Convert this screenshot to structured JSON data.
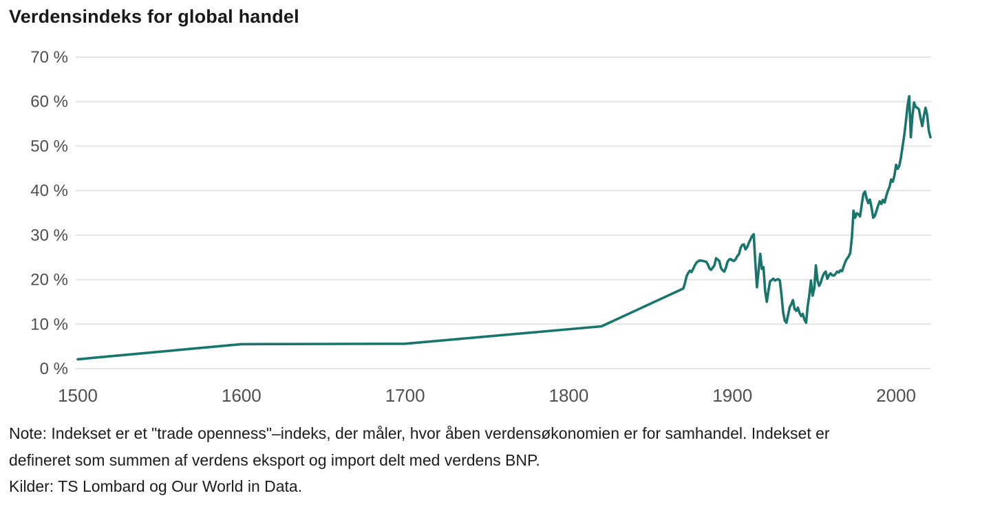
{
  "header": {
    "title": "Verdensindeks for global handel"
  },
  "chart_data": {
    "type": "line",
    "title": "Verdensindeks for global handel",
    "xlabel": "",
    "ylabel": "",
    "xlim": [
      1500,
      2021
    ],
    "ylim": [
      0,
      70
    ],
    "grid": "horizontal-only",
    "legend": "none",
    "gridline_color": "#e4e4e4",
    "axis_label_color": "#4f4f4f",
    "x_ticks": [
      {
        "value": 1500,
        "label": "1500"
      },
      {
        "value": 1600,
        "label": "1600"
      },
      {
        "value": 1700,
        "label": "1700"
      },
      {
        "value": 1800,
        "label": "1800"
      },
      {
        "value": 1900,
        "label": "1900"
      },
      {
        "value": 2000,
        "label": "2000"
      }
    ],
    "y_ticks": [
      {
        "value": 0,
        "label": "0 %"
      },
      {
        "value": 10,
        "label": "10 %"
      },
      {
        "value": 20,
        "label": "20 %"
      },
      {
        "value": 30,
        "label": "30 %"
      },
      {
        "value": 40,
        "label": "40 %"
      },
      {
        "value": 50,
        "label": "50 %"
      },
      {
        "value": 60,
        "label": "60 %"
      },
      {
        "value": 70,
        "label": "70 %"
      }
    ],
    "series": [
      {
        "name": "Verdensindeks for global handel",
        "color": "#17756b",
        "stroke_width": 3.6,
        "points": [
          [
            1500,
            2.1
          ],
          [
            1600,
            5.5
          ],
          [
            1700,
            5.6
          ],
          [
            1820,
            9.5
          ],
          [
            1870,
            18
          ],
          [
            1871,
            19.2
          ],
          [
            1872,
            20.8
          ],
          [
            1873,
            21.5
          ],
          [
            1874,
            22
          ],
          [
            1875,
            21.7
          ],
          [
            1876,
            22.4
          ],
          [
            1877,
            23.2
          ],
          [
            1878,
            23.8
          ],
          [
            1879,
            24.1
          ],
          [
            1880,
            24.3
          ],
          [
            1882,
            24.2
          ],
          [
            1884,
            24
          ],
          [
            1885,
            23.4
          ],
          [
            1886,
            22.5
          ],
          [
            1887,
            22.2
          ],
          [
            1888,
            22.7
          ],
          [
            1889,
            23.2
          ],
          [
            1890,
            24.8
          ],
          [
            1891,
            24.5
          ],
          [
            1892,
            24.2
          ],
          [
            1893,
            22.6
          ],
          [
            1894,
            22.1
          ],
          [
            1895,
            21.8
          ],
          [
            1896,
            22.6
          ],
          [
            1897,
            24
          ],
          [
            1898,
            24.5
          ],
          [
            1899,
            24.6
          ],
          [
            1900,
            24.3
          ],
          [
            1901,
            24.2
          ],
          [
            1902,
            24.6
          ],
          [
            1903,
            25.3
          ],
          [
            1904,
            25.7
          ],
          [
            1905,
            27.1
          ],
          [
            1906,
            27.8
          ],
          [
            1907,
            27.9
          ],
          [
            1908,
            26.8
          ],
          [
            1909,
            27.3
          ],
          [
            1910,
            28.2
          ],
          [
            1911,
            29
          ],
          [
            1912,
            29.8
          ],
          [
            1913,
            30.2
          ],
          [
            1914,
            24
          ],
          [
            1915,
            18.3
          ],
          [
            1916,
            22
          ],
          [
            1917,
            25.8
          ],
          [
            1918,
            22.4
          ],
          [
            1919,
            22.8
          ],
          [
            1920,
            17.5
          ],
          [
            1921,
            15
          ],
          [
            1922,
            17.5
          ],
          [
            1923,
            19.6
          ],
          [
            1924,
            19.9
          ],
          [
            1925,
            20.2
          ],
          [
            1926,
            19.8
          ],
          [
            1927,
            20
          ],
          [
            1928,
            20.1
          ],
          [
            1929,
            19.8
          ],
          [
            1930,
            16.5
          ],
          [
            1931,
            12.6
          ],
          [
            1932,
            10.8
          ],
          [
            1933,
            10.3
          ],
          [
            1934,
            12
          ],
          [
            1935,
            13.8
          ],
          [
            1936,
            14.5
          ],
          [
            1937,
            15.4
          ],
          [
            1938,
            13.4
          ],
          [
            1939,
            13
          ],
          [
            1940,
            13.7
          ],
          [
            1941,
            12.5
          ],
          [
            1942,
            11.8
          ],
          [
            1943,
            12.3
          ],
          [
            1944,
            11
          ],
          [
            1945,
            10.3
          ],
          [
            1946,
            14
          ],
          [
            1947,
            16.5
          ],
          [
            1948,
            19.8
          ],
          [
            1949,
            16.4
          ],
          [
            1950,
            18
          ],
          [
            1951,
            23.2
          ],
          [
            1952,
            19.8
          ],
          [
            1953,
            18.6
          ],
          [
            1954,
            19.4
          ],
          [
            1955,
            20.6
          ],
          [
            1956,
            21.4
          ],
          [
            1957,
            21.8
          ],
          [
            1958,
            20.2
          ],
          [
            1959,
            21
          ],
          [
            1960,
            21.4
          ],
          [
            1961,
            21
          ],
          [
            1962,
            20.9
          ],
          [
            1963,
            21.3
          ],
          [
            1964,
            21.8
          ],
          [
            1965,
            21.6
          ],
          [
            1966,
            22.1
          ],
          [
            1967,
            21.9
          ],
          [
            1968,
            23
          ],
          [
            1969,
            24
          ],
          [
            1970,
            24.7
          ],
          [
            1971,
            25.2
          ],
          [
            1972,
            26
          ],
          [
            1973,
            29.5
          ],
          [
            1974,
            35.5
          ],
          [
            1975,
            33.9
          ],
          [
            1976,
            34.9
          ],
          [
            1977,
            34.7
          ],
          [
            1978,
            34.2
          ],
          [
            1979,
            36.8
          ],
          [
            1980,
            39.2
          ],
          [
            1981,
            39.8
          ],
          [
            1982,
            38.2
          ],
          [
            1983,
            37.2
          ],
          [
            1984,
            38
          ],
          [
            1985,
            36.2
          ],
          [
            1986,
            33.9
          ],
          [
            1987,
            34.3
          ],
          [
            1988,
            35.4
          ],
          [
            1989,
            36.6
          ],
          [
            1990,
            37.6
          ],
          [
            1991,
            37
          ],
          [
            1992,
            37.9
          ],
          [
            1993,
            37.3
          ],
          [
            1994,
            38.8
          ],
          [
            1995,
            40
          ],
          [
            1996,
            40.8
          ],
          [
            1997,
            42.5
          ],
          [
            1998,
            42
          ],
          [
            1999,
            43.4
          ],
          [
            2000,
            45.8
          ],
          [
            2001,
            44.9
          ],
          [
            2002,
            45.6
          ],
          [
            2003,
            47.5
          ],
          [
            2004,
            50
          ],
          [
            2005,
            52.5
          ],
          [
            2006,
            55.5
          ],
          [
            2007,
            59
          ],
          [
            2008,
            61.2
          ],
          [
            2009,
            52
          ],
          [
            2010,
            56.8
          ],
          [
            2011,
            59.8
          ],
          [
            2012,
            58.8
          ],
          [
            2013,
            58.6
          ],
          [
            2014,
            58.2
          ],
          [
            2015,
            56.2
          ],
          [
            2016,
            54.5
          ],
          [
            2017,
            56.8
          ],
          [
            2018,
            58.6
          ],
          [
            2019,
            57
          ],
          [
            2020,
            53.5
          ],
          [
            2021,
            52
          ]
        ]
      }
    ]
  },
  "footnote": {
    "line1": "Note: Indekset er et \"trade openness\"–indeks, der måler, hvor åben verdensøkonomien er for samhandel. Indekset er",
    "line2": "defineret som summen af verdens eksport og import delt med verdens BNP.",
    "line3": "Kilder: TS Lombard og Our World in Data."
  }
}
